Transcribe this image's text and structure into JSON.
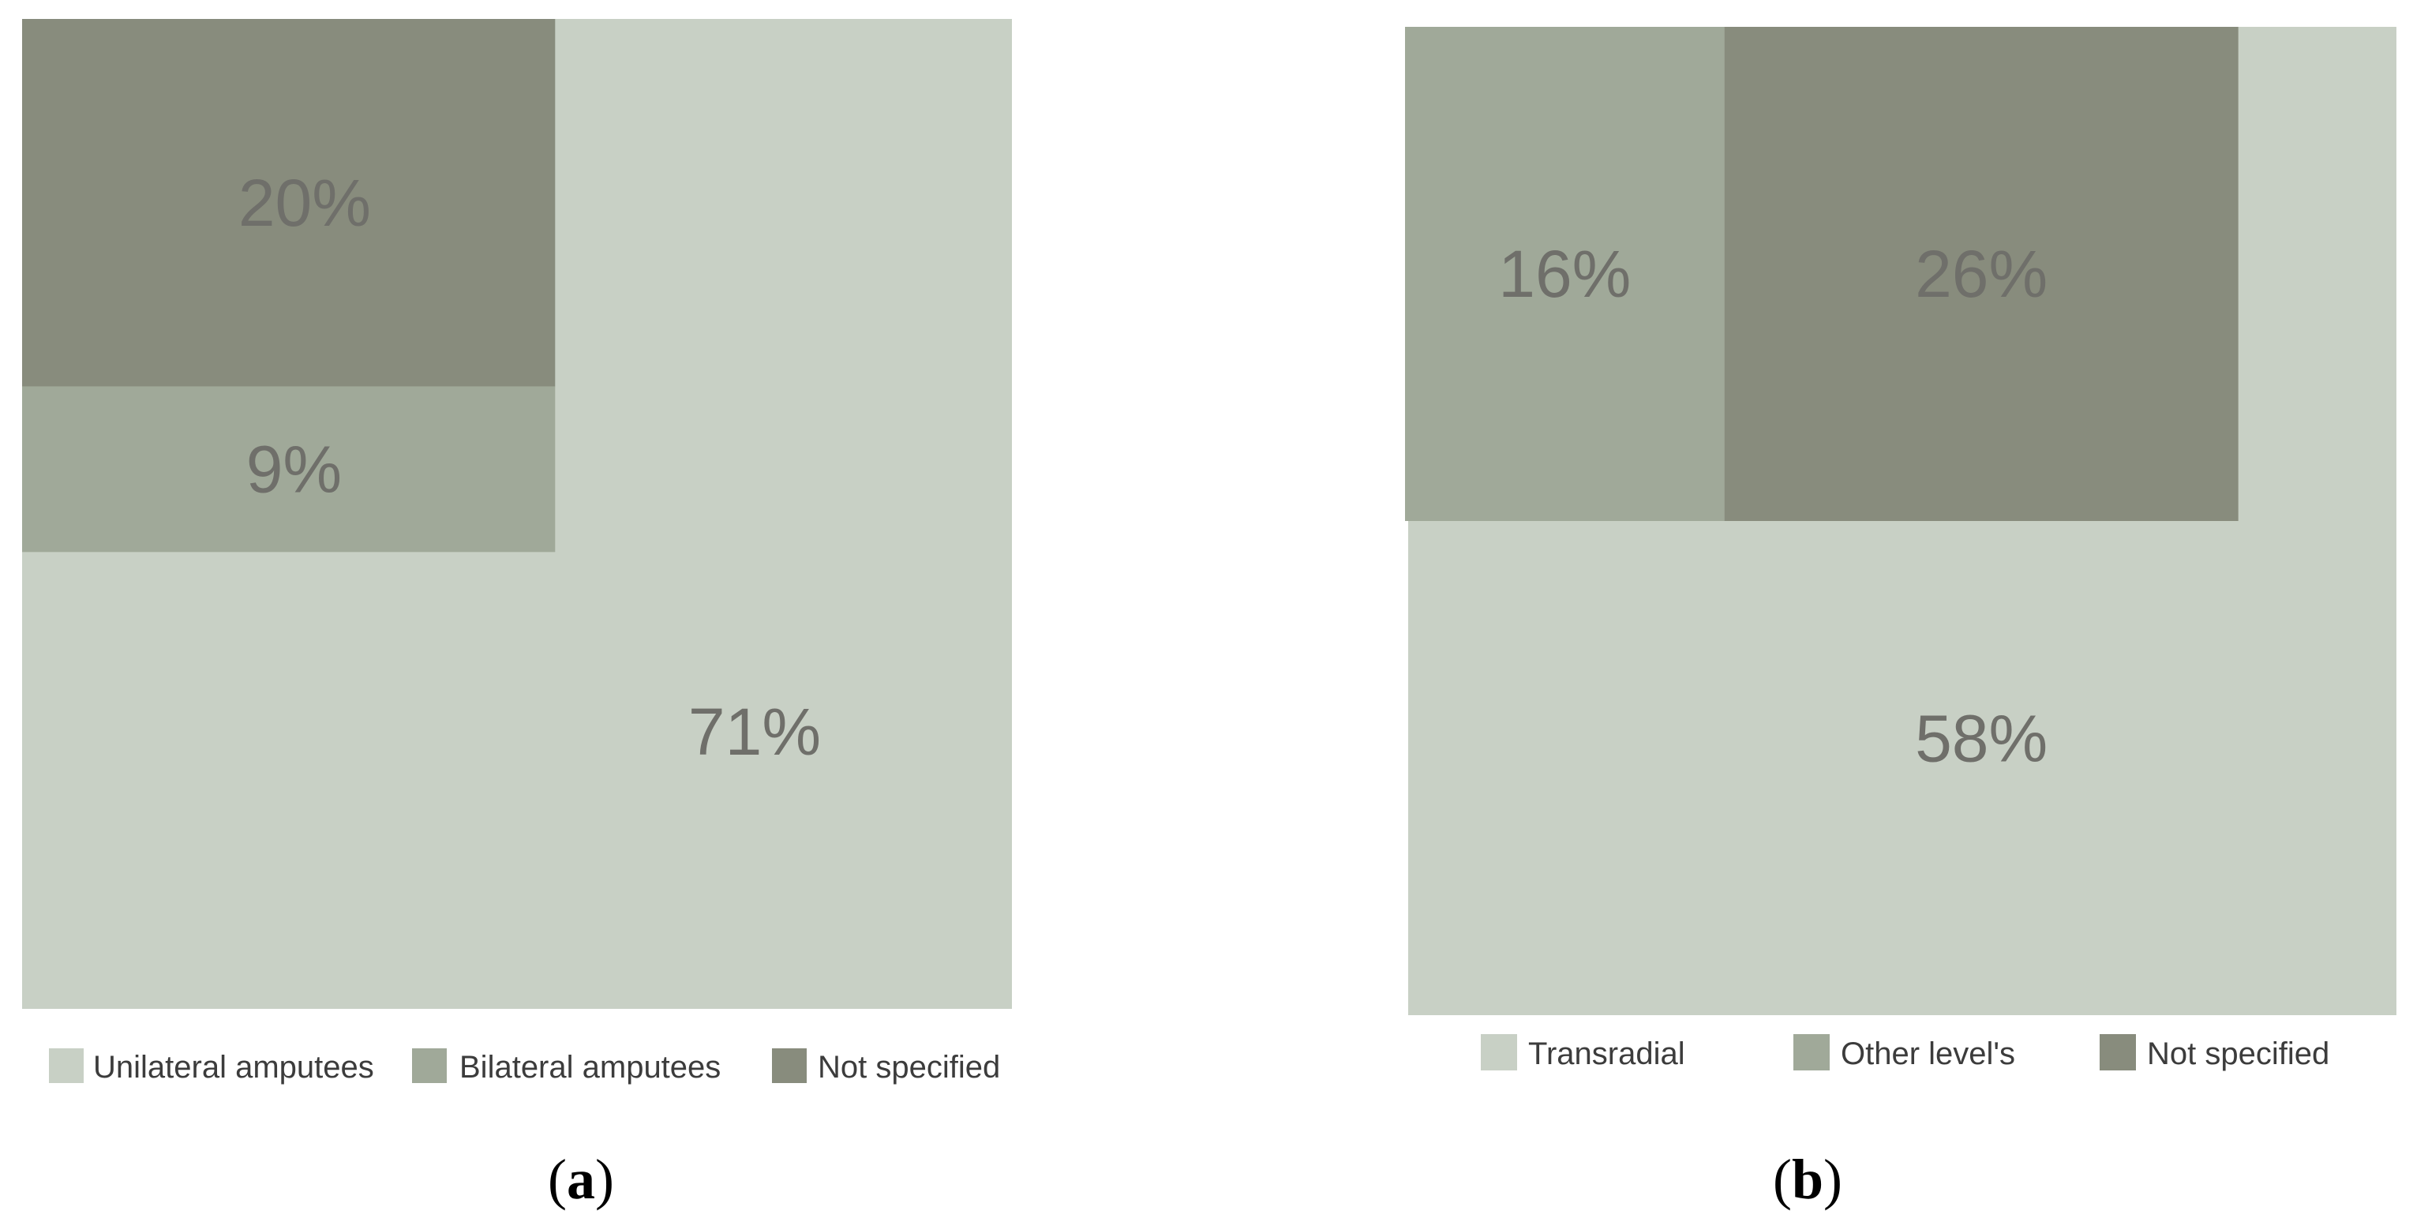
{
  "chart_data": [
    {
      "type": "treemap",
      "panel": "a",
      "colors": [
        "#c8d0c5",
        "#a0a999",
        "#888c7d"
      ],
      "segments": [
        {
          "name": "Unilateral amputees",
          "value": 71,
          "label": "71%"
        },
        {
          "name": "Bilateral amputees",
          "value": 9,
          "label": "9%"
        },
        {
          "name": "Not specified",
          "value": 20,
          "label": "20%"
        }
      ],
      "legend": [
        "Unilateral amputees",
        "Bilateral amputees",
        "Not specified"
      ],
      "legend_position": "bottom",
      "caption": {
        "open": "(",
        "letter": "a",
        "close": ")"
      }
    },
    {
      "type": "treemap",
      "panel": "b",
      "colors": [
        "#c8d0c5",
        "#a0a999",
        "#888c7d"
      ],
      "segments": [
        {
          "name": "Transradial",
          "value": 58,
          "label": "58%"
        },
        {
          "name": "Other level's",
          "value": 16,
          "label": "16%"
        },
        {
          "name": "Not specified",
          "value": 26,
          "label": "26%"
        }
      ],
      "legend": [
        "Transradial",
        "Other level's",
        "Not specified"
      ],
      "legend_position": "bottom",
      "caption": {
        "open": "(",
        "letter": "b",
        "close": ")"
      }
    }
  ]
}
